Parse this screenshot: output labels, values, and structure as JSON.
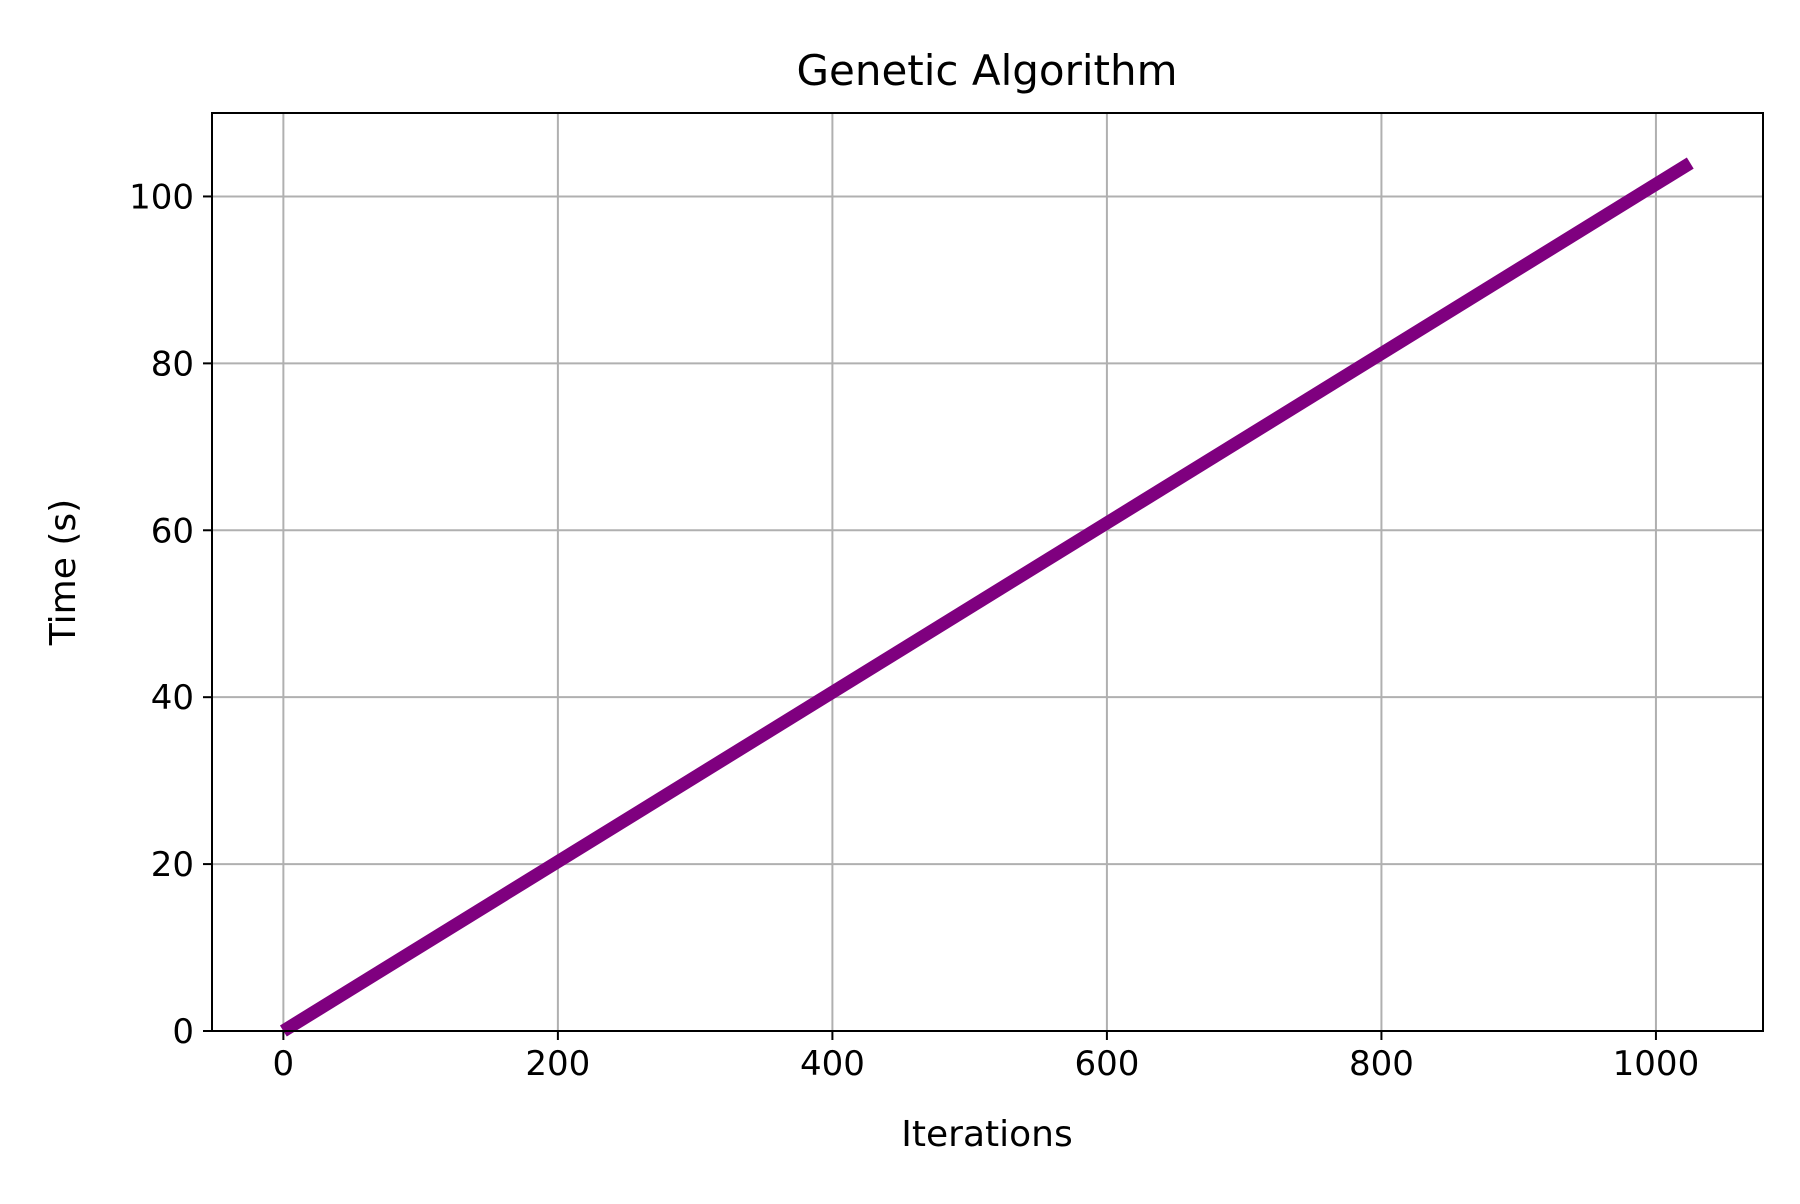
{
  "chart_data": {
    "type": "line",
    "title": "Genetic Algorithm",
    "xlabel": "Iterations",
    "ylabel": "Time (s)",
    "xlim": [
      -52,
      1078
    ],
    "ylim": [
      0,
      110
    ],
    "xticks": [
      0,
      200,
      400,
      600,
      800,
      1000
    ],
    "yticks": [
      0,
      20,
      40,
      60,
      80,
      100
    ],
    "grid": true,
    "legend": "none",
    "colors": {
      "line": "#7f007f",
      "grid": "#b0b0b0",
      "axes": "#000000"
    },
    "series": [
      {
        "x": [
          0,
          1025
        ],
        "y": [
          0,
          104
        ]
      }
    ]
  }
}
